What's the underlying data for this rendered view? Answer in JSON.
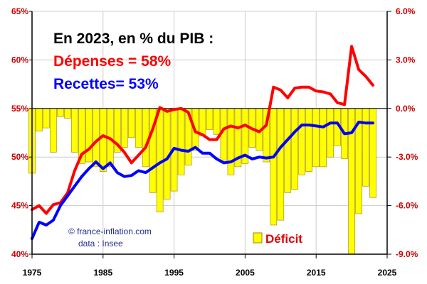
{
  "chart_data": {
    "type": "bar+line",
    "title": "En 2023, en % du PIB :",
    "annotations": {
      "depenses": "Dépenses = 58%",
      "recettes": "Recettes= 53%",
      "credit_line1": "© france-inflation.com",
      "credit_line2": "data : Insee"
    },
    "legend": {
      "label": "Déficit",
      "position": "bottom-right",
      "color": "#ffff00"
    },
    "left_axis": {
      "ylim": [
        40,
        65
      ],
      "ticks": [
        40,
        45,
        50,
        55,
        60,
        65
      ],
      "tick_labels": [
        "40%",
        "45%",
        "50%",
        "55%",
        "60%",
        "65%"
      ]
    },
    "right_axis": {
      "ylim": [
        -9.0,
        6.0
      ],
      "ticks": [
        -9,
        -6,
        -3,
        0,
        3,
        6
      ],
      "tick_labels": [
        "-9.0%",
        "-6.0%",
        "-3.0%",
        "0.0%",
        "3.0%",
        "6.0%"
      ]
    },
    "x_axis": {
      "xlim": [
        1975,
        2025
      ],
      "ticks": [
        1975,
        1985,
        1995,
        2005,
        2015,
        2025
      ],
      "tick_labels": [
        "1975",
        "1985",
        "1995",
        "2005",
        "2015",
        "2025"
      ]
    },
    "grid": true,
    "colors": {
      "depenses": "#ff0000",
      "recettes": "#0000ff",
      "deficit_fill": "#ffff00",
      "deficit_stroke": "#a08000",
      "axis": "#000000",
      "grid": "#cccccc"
    },
    "deficit": {
      "x": [
        1975,
        1976,
        1977,
        1978,
        1979,
        1980,
        1981,
        1982,
        1983,
        1984,
        1985,
        1986,
        1987,
        1988,
        1989,
        1990,
        1991,
        1992,
        1993,
        1994,
        1995,
        1996,
        1997,
        1998,
        1999,
        2000,
        2001,
        2002,
        2003,
        2004,
        2005,
        2006,
        2007,
        2008,
        2009,
        2010,
        2011,
        2012,
        2013,
        2014,
        2015,
        2016,
        2017,
        2018,
        2019,
        2020,
        2021,
        2022,
        2023
      ],
      "values": [
        -4.0,
        -1.4,
        -1.2,
        -2.7,
        -0.5,
        -0.6,
        -2.7,
        -3.4,
        -3.3,
        -3.6,
        -3.9,
        -3.6,
        -2.7,
        -2.4,
        -1.8,
        -2.4,
        -3.6,
        -5.2,
        -6.4,
        -5.6,
        -5.1,
        -4.1,
        -3.5,
        -2.6,
        -1.7,
        -1.3,
        -1.6,
        -3.2,
        -4.1,
        -3.6,
        -3.4,
        -2.4,
        -2.6,
        -3.3,
        -7.2,
        -6.9,
        -5.2,
        -5.0,
        -4.1,
        -3.9,
        -3.6,
        -3.6,
        -3.0,
        -2.3,
        -3.1,
        -9.0,
        -6.5,
        -4.8,
        -5.5
      ]
    },
    "series": [
      {
        "name": "Dépenses",
        "x": [
          1975,
          1976,
          1977,
          1978,
          1979,
          1980,
          1981,
          1982,
          1983,
          1984,
          1985,
          1986,
          1987,
          1988,
          1989,
          1990,
          1991,
          1992,
          1993,
          1994,
          1995,
          1996,
          1997,
          1998,
          1999,
          2000,
          2001,
          2002,
          2003,
          2004,
          2005,
          2006,
          2007,
          2008,
          2009,
          2010,
          2011,
          2012,
          2013,
          2014,
          2015,
          2016,
          2017,
          2018,
          2019,
          2020,
          2021,
          2022,
          2023
        ],
        "values": [
          44.6,
          45.0,
          44.2,
          45.1,
          45.3,
          46.3,
          48.6,
          50.3,
          50.8,
          51.6,
          52.2,
          51.9,
          51.3,
          50.5,
          49.4,
          50.2,
          51.0,
          52.9,
          55.1,
          54.7,
          54.9,
          55.0,
          54.6,
          52.6,
          52.3,
          51.8,
          51.8,
          52.9,
          53.2,
          53.0,
          53.3,
          52.9,
          52.6,
          53.3,
          57.2,
          56.9,
          56.1,
          57.1,
          57.2,
          57.2,
          56.8,
          56.7,
          56.5,
          55.6,
          55.4,
          61.4,
          59.0,
          58.3,
          57.4
        ]
      },
      {
        "name": "Recettes",
        "x": [
          1975,
          1976,
          1977,
          1978,
          1979,
          1980,
          1981,
          1982,
          1983,
          1984,
          1985,
          1986,
          1987,
          1988,
          1989,
          1990,
          1991,
          1992,
          1993,
          1994,
          1995,
          1996,
          1997,
          1998,
          1999,
          2000,
          2001,
          2002,
          2003,
          2004,
          2005,
          2006,
          2007,
          2008,
          2009,
          2010,
          2011,
          2012,
          2013,
          2014,
          2015,
          2016,
          2017,
          2018,
          2019,
          2020,
          2021,
          2022,
          2023
        ],
        "values": [
          41.6,
          43.3,
          43.0,
          43.5,
          45.0,
          46.0,
          47.0,
          48.0,
          48.8,
          49.5,
          48.8,
          49.4,
          48.4,
          48.0,
          48.1,
          48.6,
          48.4,
          48.9,
          49.4,
          49.8,
          50.9,
          50.7,
          50.6,
          51.0,
          50.4,
          50.4,
          49.8,
          49.4,
          49.5,
          49.9,
          50.2,
          49.8,
          50.0,
          49.9,
          50.0,
          51.0,
          51.8,
          52.6,
          53.3,
          53.3,
          53.2,
          53.1,
          53.5,
          53.5,
          52.4,
          52.5,
          53.6,
          53.5,
          53.5
        ]
      }
    ]
  }
}
